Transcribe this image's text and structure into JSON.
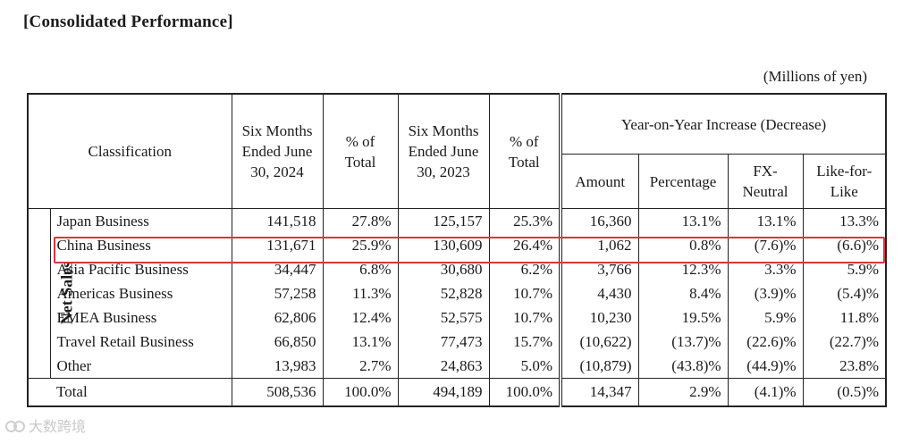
{
  "heading": "[Consolidated Performance]",
  "unit": "(Millions of yen)",
  "table": {
    "headers": {
      "classification": "Classification",
      "col_2024": "Six Months Ended June 30, 2024",
      "pct_2024": "% of Total",
      "col_2023": "Six Months Ended June 30, 2023",
      "pct_2023": "% of Total",
      "yoy": "Year-on-Year Increase (Decrease)",
      "amount": "Amount",
      "percentage": "Percentage",
      "fx_neutral": "FX-Neutral",
      "like_for_like": "Like-for-Like"
    },
    "group_label": "Net Sales",
    "rows": [
      {
        "name": "Japan Business",
        "v2024": "141,518",
        "p2024": "27.8%",
        "v2023": "125,157",
        "p2023": "25.3%",
        "amount": "16,360",
        "pct": "13.1%",
        "fx": "13.1%",
        "lfl": "13.3%"
      },
      {
        "name": "China Business",
        "v2024": "131,671",
        "p2024": "25.9%",
        "v2023": "130,609",
        "p2023": "26.4%",
        "amount": "1,062",
        "pct": "0.8%",
        "fx": "(7.6)%",
        "lfl": "(6.6)%"
      },
      {
        "name": "Asia Pacific Business",
        "v2024": "34,447",
        "p2024": "6.8%",
        "v2023": "30,680",
        "p2023": "6.2%",
        "amount": "3,766",
        "pct": "12.3%",
        "fx": "3.3%",
        "lfl": "5.9%"
      },
      {
        "name": "Americas Business",
        "v2024": "57,258",
        "p2024": "11.3%",
        "v2023": "52,828",
        "p2023": "10.7%",
        "amount": "4,430",
        "pct": "8.4%",
        "fx": "(3.9)%",
        "lfl": "(5.4)%"
      },
      {
        "name": "EMEA Business",
        "v2024": "62,806",
        "p2024": "12.4%",
        "v2023": "52,575",
        "p2023": "10.7%",
        "amount": "10,230",
        "pct": "19.5%",
        "fx": "5.9%",
        "lfl": "11.8%"
      },
      {
        "name": "Travel Retail Business",
        "v2024": "66,850",
        "p2024": "13.1%",
        "v2023": "77,473",
        "p2023": "15.7%",
        "amount": "(10,622)",
        "pct": "(13.7)%",
        "fx": "(22.6)%",
        "lfl": "(22.7)%"
      },
      {
        "name": "Other",
        "v2024": "13,983",
        "p2024": "2.7%",
        "v2023": "24,863",
        "p2023": "5.0%",
        "amount": "(10,879)",
        "pct": "(43.8)%",
        "fx": "(44.9)%",
        "lfl": "23.8%"
      }
    ],
    "total": {
      "name": "Total",
      "v2024": "508,536",
      "p2024": "100.0%",
      "v2023": "494,189",
      "p2023": "100.0%",
      "amount": "14,347",
      "pct": "2.9%",
      "fx": "(4.1)%",
      "lfl": "(0.5)%"
    }
  },
  "highlight_color": "#d9363e",
  "watermark": "大数跨境"
}
